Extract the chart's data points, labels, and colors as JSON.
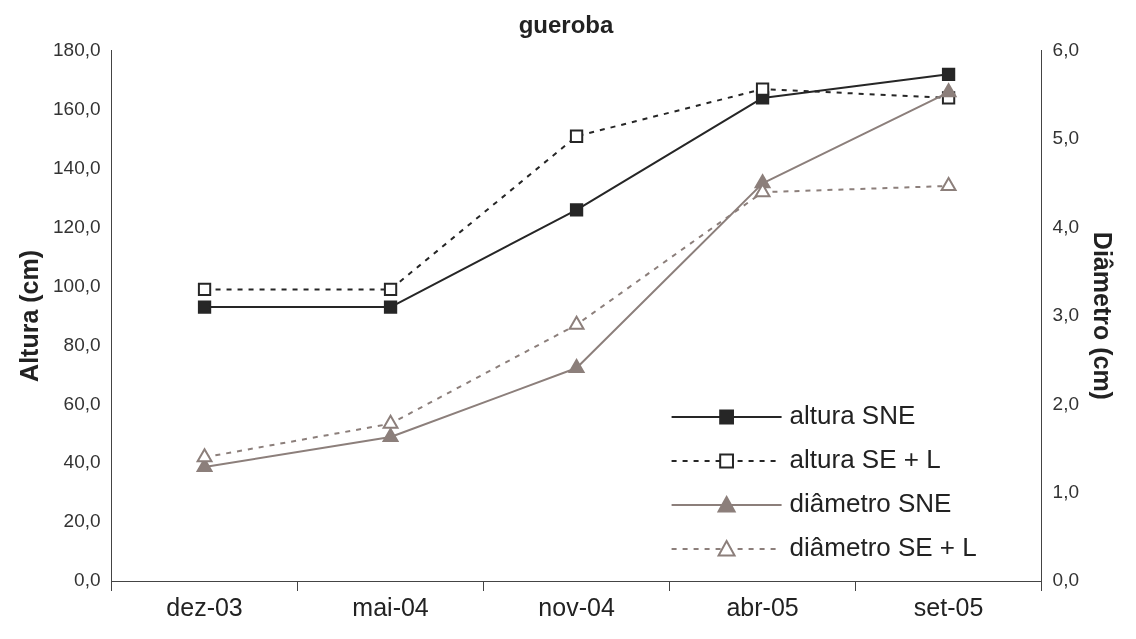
{
  "chart_data": {
    "type": "line",
    "title": "gueroba",
    "ylabel": "Altura (cm)",
    "y2label": "Diâmetro (cm)",
    "categories": [
      "dez-03",
      "mai-04",
      "nov-04",
      "abr-05",
      "set-05"
    ],
    "ylim": [
      0,
      180
    ],
    "yticks": [
      {
        "value": 0,
        "label": "0,0"
      },
      {
        "value": 20,
        "label": "20,0"
      },
      {
        "value": 40,
        "label": "40,0"
      },
      {
        "value": 60,
        "label": "60,0"
      },
      {
        "value": 80,
        "label": "80,0"
      },
      {
        "value": 100,
        "label": "100,0"
      },
      {
        "value": 120,
        "label": "120,0"
      },
      {
        "value": 140,
        "label": "140,0"
      },
      {
        "value": 160,
        "label": "160,0"
      },
      {
        "value": 180,
        "label": "180,0"
      }
    ],
    "y2lim": [
      0,
      6
    ],
    "y2ticks": [
      {
        "value": 0,
        "label": "0,0"
      },
      {
        "value": 1,
        "label": "1,0"
      },
      {
        "value": 2,
        "label": "2,0"
      },
      {
        "value": 3,
        "label": "3,0"
      },
      {
        "value": 4,
        "label": "4,0"
      },
      {
        "value": 5,
        "label": "5,0"
      },
      {
        "value": 6,
        "label": "6,0"
      }
    ],
    "grid": false,
    "legend": "bottom right",
    "series": [
      {
        "name": "altura SNE",
        "color": "#262626",
        "marker": "square",
        "line_style": "solid",
        "values": [
          93,
          93,
          126,
          164,
          172
        ]
      },
      {
        "name": "altura SE + L",
        "color": "#262626",
        "marker": "square",
        "line_style": "dashed",
        "values": [
          99,
          99,
          151,
          167,
          164
        ]
      },
      {
        "name": "diâmetro SNE",
        "color": "#8c7f7b",
        "marker": "triangle",
        "line_style": "solid",
        "axis": "y2",
        "values": [
          1.29,
          1.63,
          2.41,
          4.5,
          5.53
        ]
      },
      {
        "name": "diâmetro SE + L",
        "color": "#8c7f7b",
        "marker": "triangle",
        "line_style": "dashed",
        "axis": "y2",
        "values": [
          1.4,
          1.78,
          2.9,
          4.4,
          4.47
        ]
      }
    ]
  }
}
